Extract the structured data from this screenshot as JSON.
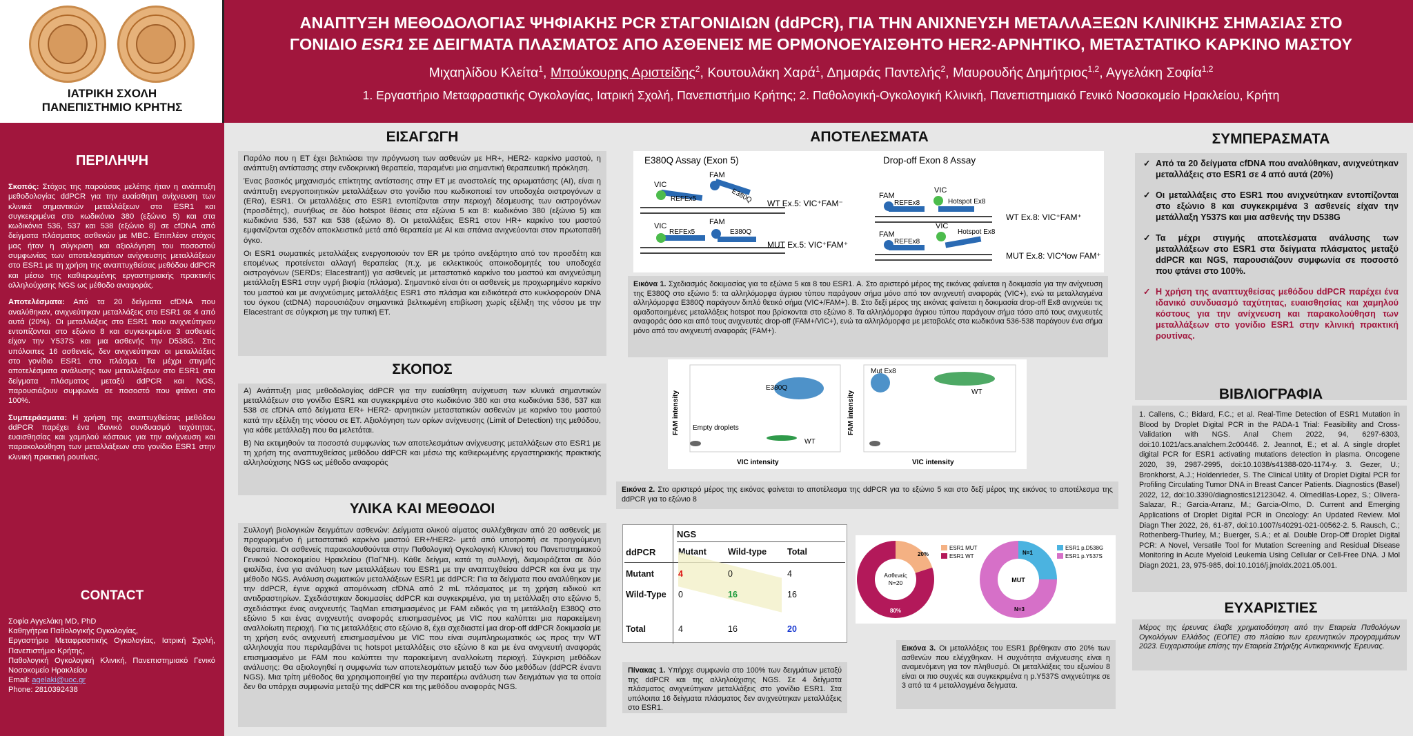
{
  "header": {
    "school_line1": "ΙΑΤΡΙΚΗ ΣΧΟΛΗ",
    "school_line2": "ΠΑΝΕΠΙΣΤΗΜΙΟ ΚΡΗΤΗΣ",
    "title_line1": "ΑΝΑΠΤΥΞΗ ΜΕΘΟΔΟΛΟΓΙΑΣ ΨΗΦΙΑΚΗΣ PCR ΣΤΑΓΟΝΙΔΙΩΝ (ddPCR), ΓΙΑ ΤΗΝ ΑΝΙΧΝΕΥΣΗ ΜΕΤΑΛΛΑΞΕΩΝ ΚΛΙΝΙΚΗΣ ΣΗΜΑΣΙΑΣ ΣΤΟ",
    "title_line2_a": "ΓΟΝΙΔΙΟ ",
    "title_line2_gene": "ESR1",
    "title_line2_b": " ΣΕ ΔΕΙΓΜΑΤΑ ΠΛΑΣΜΑΤΟΣ ΑΠΟ ΑΣΘΕΝΕΙΣ ΜΕ ΟΡΜΟΝΟΕΥΑΙΣΘΗΤΟ HER2-ΑΡΝΗΤΙΚΟ, ΜΕΤΑΣΤΑΤΙΚΟ ΚΑΡΚΙΝΟ ΜΑΣΤΟΥ",
    "authors": [
      {
        "name": "Μιχαηλίδου Κλείτα",
        "sup": "1",
        "presenter": false
      },
      {
        "name": "Μπούκουρης Αριστείδης",
        "sup": "2",
        "presenter": true
      },
      {
        "name": "Κουτουλάκη Χαρά",
        "sup": "1",
        "presenter": false
      },
      {
        "name": "Δημαράς Παντελής",
        "sup": "2",
        "presenter": false
      },
      {
        "name": "Μαυρουδής Δημήτριος",
        "sup": "1,2",
        "presenter": false
      },
      {
        "name": "Αγγελάκη Σοφία",
        "sup": "1,2",
        "presenter": false
      }
    ],
    "affiliations": "1. Εργαστήριο Μεταφραστικής Ογκολογίας, Ιατρική Σχολή, Πανεπιστήμιο Κρήτης; 2. Παθολογική-Ογκολογική Κλινική, Πανεπιστημιακό Γενικό Νοσοκομείο Ηρακλείου, Κρήτη"
  },
  "abstract": {
    "title": "ΠΕΡΙΛΗΨΗ",
    "p1_label": "Σκοπός:",
    "p1": " Στόχος της παρούσας μελέτης ήταν η ανάπτυξη μεθοδολογίας ddPCR για την ευαίσθητη ανίχνευση των κλινικά σημαντικών μεταλλάξεων στο ESR1 και συγκεκριμένα στο κωδικόνιο 380 (εξώνιο 5) και στα κωδικόνια 536, 537 και 538 (εξώνιο 8) σε cfDNA από δείγματα πλάσματος ασθενών με MBC. Επιπλέον στόχος μας ήταν η σύγκριση και αξιολόγηση του ποσοστού συμφωνίας των αποτελεσμάτων ανίχνευσης μεταλλάξεων στο ESR1 με τη χρήση της αναπτυχθείσας μεθόδου ddPCR και μέσω της καθιερωμένης εργαστηριακής πρακτικής αλληλούχισης NGS ως μέθοδο αναφοράς.",
    "p2_label": "Αποτελέσματα:",
    "p2": " Από τα 20 δείγματα cfDNA που αναλύθηκαν, ανιχνεύτηκαν μεταλλάξεις στο ESR1 σε 4 από αυτά (20%). Οι μεταλλάξεις στο ESR1 που ανιχνεύτηκαν εντοπίζονται στο εξώνιο 8 και συγκεκριμένα 3 ασθενείς είχαν την Y537S και μια ασθενής την D538G. Στις υπόλοιπες 16 ασθενείς, δεν ανιχνεύτηκαν οι μεταλλάξεις στο γονίδιο ESR1 στο πλάσμα. Τα μέχρι στιγμής αποτελέσματα ανάλυσης των μεταλλάξεων στο ESR1 στα δείγματα πλάσματος μεταξύ ddPCR και NGS, παρουσιάζουν συμφωνία σε ποσοστό που φτάνει στο 100%.",
    "p3_label": "Συμπεράσματα:",
    "p3": " Η χρήση της αναπτυχθείσας μεθόδου ddPCR παρέχει ένα ιδανικό συνδυασμό ταχύτητας, ευαισθησίας και χαμηλού κόστους για την ανίχνευση και παρακολούθηση των μεταλλάξεων στο γονίδιο ESR1 στην κλινική πρακτική ρουτίνας."
  },
  "contact": {
    "title": "CONTACT",
    "lines": [
      "Σοφία Αγγελάκη MD, PhD",
      "Καθηγήτρια Παθολογικής Ογκολογίας,",
      "Εργαστήριο Μεταφραστικής Ογκολογίας, Ιατρική Σχολή, Πανεπιστήμιο Κρήτης,",
      "Παθολογική Ογκολογική Κλινική, Πανεπιστημιακό Γενικό Νοσοκομείο Ηρακλείου"
    ],
    "email_label": "Email: ",
    "email": "agelaki@uoc.gr",
    "phone": "Phone: 2810392438"
  },
  "intro": {
    "title": "ΕΙΣΑΓΩΓΗ",
    "p1": "Παρόλο που η ET έχει βελτιώσει την πρόγνωση των ασθενών με HR+, HER2- καρκίνο μαστού, η ανάπτυξη αντίστασης στην ενδοκρινική θεραπεία, παραμένει μια σημαντική θεραπευτική πρόκληση.",
    "p2": "Ένας βασικός μηχανισμός επίκτητης αντίστασης στην ET με αναστολείς της αρωματάσης (AI), είναι η ανάπτυξη ενεργοποιητικών μεταλλάξεων στο γονίδιο που κωδικοποιεί τον υποδοχέα οιστρογόνων α (ERα), ESR1. Οι μεταλλάξεις στο ESR1 εντοπίζονται στην περιοχή δέσμευσης των οιστρογόνων (προσδέτης), συνήθως σε δύο hotspot θέσεις στα εξώνια 5 και 8: κωδικόνιο 380 (εξώνιο 5) και κωδικόνια 536, 537 και 538 (εξώνιο 8). Οι μεταλλάξεις ESR1 στον HR+ καρκίνο του μαστού εμφανίζονται σχεδόν αποκλειστικά μετά από θεραπεία με AI και σπάνια ανιχνεύονται στον πρωτοπαθή όγκο.",
    "p3": "Οι ESR1 σωματικές μεταλλάξεις ενεργοποιούν τον ER με τρόπο ανεξάρτητο από τον προσδέτη και επομένως προτείνεται αλλαγή θεραπείας (π.χ. με εκλεκτικούς αποικοδομητές του υποδοχέα οιστρογόνων (SERDs; Elacestrant)) για ασθενείς με μεταστατικό καρκίνο του μαστού και ανιχνεύσιμη μετάλλαξη ESR1 στην υγρή βιοψία (πλάσμα). Σημαντικό είναι ότι οι ασθενείς με προχωρημένο καρκίνο του μαστού και με ανιχνεύσιμες μεταλλάξεις ESR1 στο πλάσμα και ειδικότερά στο κυκλοφορούν DNA του όγκου (ctDNA) παρουσιάζουν σημαντικά βελτιωμένη επιβίωση χωρίς εξέλιξη της νόσου με την Elacestrant σε σύγκριση με την τυπική ET."
  },
  "aim": {
    "title": "ΣΚΟΠΟΣ",
    "a": "A) Ανάπτυξη μιας μεθοδολογίας ddPCR για την ευαίσθητη ανίχνευση των κλινικά σημαντικών μεταλλάξεων στο γονίδιο ESR1 και συγκεκριμένα στο κωδικόνιο 380 και στα κωδικόνια 536, 537 και 538 σε cfDNA από δείγματα ER+ HER2- αρνητικών μεταστατικών ασθενών με καρκίνο του μαστού κατά την εξέλιξη της νόσου σε ET. Αξιολόγηση των ορίων ανίχνευσης (Limit of Detection) της μεθόδου, για κάθε μετάλλαξη που θα μελετάται.",
    "b": "B) Να εκτιμηθούν τα ποσοστά συμφωνίας των αποτελεσμάτων ανίχνευσης μεταλλάξεων στο ESR1 με τη χρήση της αναπτυχθείσας μεθόδου ddPCR και μέσω της καθιερωμένης εργαστηριακής πρακτικής αλληλούχισης NGS ως μέθοδο αναφοράς"
  },
  "methods": {
    "title": "ΥΛΙΚΑ ΚΑΙ ΜΕΘΟΔΟΙ",
    "text": "Συλλογή βιολογικών δειγμάτων ασθενών: Δείγματα ολικού αίματος συλλέχθηκαν από 20 ασθενείς με προχωρημένο ή μεταστατικό καρκίνο μαστού ER+/HER2- μετά από υποτροπή σε προηγούμενη θεραπεία. Οι ασθενείς παρακολουθούνται στην Παθολογική Ογκολογική Κλινική του Πανεπιστημιακού Γενικού Νοσοκομείου Ηρακλείου (ΠαΓΝΗ). Κάθε δείγμα, κατά τη συλλογή, διαμοιράζεται σε δύο φιαλίδια, ένα για ανάλυση των μεταλλάξεων του ESR1 με την αναπτυχθείσα ddPCR και ένα με την μέθοδο NGS. Ανάλυση σωματικών μεταλλάξεων ESR1 με ddPCR: Για τα δείγματα που αναλύθηκαν με την ddPCR, έγινε αρχικά απομόνωση cfDNA από 2 mL πλάσματος με τη χρήση ειδικού κιτ αντιδραστηρίων. Σχεδιάστηκαν δοκιμασίες ddPCR και συγκεκριμένα, για τη μετάλλαξη στο εξώνιο 5, σχεδιάστηκε ένας ανιχνευτής TaqMan επισημασμένος με FAM ειδικός για τη μετάλλαξη E380Q στο εξώνιο 5 και ένας ανιχνευτής αναφοράς επισημασμένος με VIC που καλύπτει μια παρακείμενη αναλλοίωτη περιοχή. Για τις μεταλλάξεις στο εξώνιο 8, έχει σχεδιαστεί μια drop-off ddPCR δοκιμασία με τη χρήση ενός ανιχνευτή επισημασμένου με VIC που είναι συμπληρωματικός ως προς την WT αλληλουχία που περιλαμβάνει τις hotspot μεταλλάξεις στο εξώνιο 8 και με ένα ανιχνευτή αναφοράς επισημασμένο με FAM που καλύπτει την παρακείμενη αναλλοίωτη περιοχή. Σύγκριση μεθόδων ανάλυσης: Θα αξιολογηθεί η συμφωνία των αποτελεσμάτων μεταξύ των δύο μεθόδων (ddPCR έναντι NGS). Μια τρίτη μέθοδος θα χρησιμοποιηθεί για την περαιτέρω ανάλυση των δειγμάτων για τα οποία δεν θα υπάρχει συμφωνία μεταξύ της ddPCR και της μεθόδου αναφοράς NGS."
  },
  "results": {
    "title": "ΑΠΟΤΕΛΕΣΜΑΤΑ",
    "assay_left_title": "E380Q Assay (Exon 5)",
    "assay_right_title": "Drop-off Exon 8 Assay",
    "lbl_vic": "VIC",
    "lbl_fam": "FAM",
    "lbl_refex5": "REFEx5",
    "lbl_e380q": "E380Q",
    "lbl_refex8": "REFEx8",
    "lbl_hotspot": "Hotspot Ex8",
    "wt5": "WT Ex.5: VIC⁺FAM⁻",
    "mut5": "MUT Ex.5: VIC⁺FAM⁺",
    "wt8": "WT Ex.8: VIC⁺FAM⁺",
    "mut8": "MUT Ex.8: VIC^low FAM⁺",
    "fig1_label": "Εικόνα 1.",
    "fig1": " Σχεδιασμός δοκιμασίας για τα εξώνια 5 και 8 του ESR1. A. Στο αριστερό μέρος της εικόνας φαίνεται η δοκιμασία για την ανίχνευση της E380Q στο εξώνιο 5: τα αλληλόμορφα άγριου τύπου παράγουν σήμα μόνο από τον ανιχνευτή αναφοράς (VIC+), ενώ τα μεταλλαγμένα αλληλόμορφα E380Q παράγουν διπλό θετικό σήμα (VIC+/FAM+). B. Στο δεξί μέρος της εικόνας φαίνεται η δοκιμασία drop-off Ex8 ανιχνεύει τις ομαδοποιημένες μεταλλάξεις hotspot που βρίσκονται στο εξώνιο 8. Τα αλληλόμορφα άγριου τύπου παράγουν σήμα τόσο από τους ανιχνευτές αναφοράς όσο και από τους ανιχνευτές drop-off (FAM+/VIC+), ενώ τα αλληλόμορφα με μεταβολές στα κωδικόνια 536-538 παράγουν ένα σήμα μόνο από τον ανιχνευτή αναφοράς (FAM+).",
    "plot_ylabel": "FAM intensity",
    "plot_xlabel": "VIC intensity",
    "plot1_e380q": "E380Q",
    "plot1_empty": "Empty droplets",
    "plot1_wt": "WT",
    "plot2_mut": "Mut Ex8",
    "plot2_wt": "WT",
    "fig2_label": "Εικόνα 2.",
    "fig2": " Στο αριστερό μέρος της εικόνας φαίνεται το αποτέλεσμα της ddPCR για το εξώνιο 5 και στο δεξί μέρος της εικόνας το αποτέλεσμα της ddPCR για το εξώνιο 8",
    "table": {
      "ngs": "NGS",
      "ddpcr": "ddPCR",
      "headers": [
        "Mutant",
        "Wild-type",
        "Total"
      ],
      "rows": [
        {
          "label": "Mutant",
          "cells": [
            "4",
            "0",
            "4"
          ]
        },
        {
          "label": "Wild-Type",
          "cells": [
            "0",
            "16",
            "16"
          ]
        },
        {
          "label": "Total",
          "cells": [
            "4",
            "16",
            "20"
          ]
        }
      ]
    },
    "table_cap_label": "Πίνακας 1.",
    "table_cap": " Υπήρχε συμφωνία στο 100% των δειγμάτων μεταξύ της ddPCR και της αλληλούχισης NGS. Σε 4 δείγματα πλάσματος ανιχνεύτηκαν μεταλλάξεις στο γονίδιο ESR1. Στα υπόλοιπα 16 δείγματα πλάσματος δεν ανιχνεύτηκαν μεταλλάξεις στο ESR1.",
    "donut1_center": [
      "Ασθενείς",
      "N=20"
    ],
    "donut1_p_mut": "20%",
    "donut1_p_wt": "80%",
    "donut1_leg": [
      "ESR1 MUT",
      "ESR1 WT"
    ],
    "donut2_center": "MUT",
    "donut2_n1": "N=1",
    "donut2_n3": "N=3",
    "donut2_leg": [
      "ESR1 p.D538G",
      "ESR1 p.Y537S"
    ],
    "fig3_label": "Εικόνα 3.",
    "fig3": " Οι μεταλλάξεις του ESR1 βρέθηκαν στο 20% των ασθενών που ελέγχθηκαν. Η συχνότητα ανίχνευσης είναι η αναμενόμενη για τον πληθυσμό. Οι μεταλλάξεις του εξωνίου 8 είναι οι πιο συχνές και συγκεκριμένα η p.Y537S ανιχνεύτηκε σε 3 από τα 4 μεταλλαγμένα δείγματα."
  },
  "donut_data": [
    {
      "name": "Ασθενείς",
      "slices": [
        {
          "label": "ESR1 MUT",
          "value": 20,
          "color": "#f4b183"
        },
        {
          "label": "ESR1 WT",
          "value": 80,
          "color": "#b3195a"
        }
      ]
    },
    {
      "name": "MUT",
      "slices": [
        {
          "label": "ESR1 p.D538G",
          "value": 1,
          "color": "#4bb3e0"
        },
        {
          "label": "ESR1 p.Y537S",
          "value": 3,
          "color": "#d670c8"
        }
      ]
    }
  ],
  "conclusions": {
    "title": "ΣΥΜΠΕΡΑΣΜΑΤΑ",
    "items": [
      "Από τα 20 δείγματα cfDNA που αναλύθηκαν, ανιχνεύτηκαν μεταλλάξεις στο ESR1 σε 4 από αυτά (20%)",
      "Οι μεταλλάξεις στο ESR1 που ανιχνεύτηκαν εντοπίζονται στο εξώνιο 8 και συγκεκριμένα 3 ασθενείς είχαν την μετάλλαξη Y537S και μια ασθενής την D538G",
      "Τα μέχρι στιγμής αποτελέσματα ανάλυσης των μεταλλάξεων στο ESR1 στα δείγματα πλάσματος μεταξύ ddPCR και NGS, παρουσιάζουν συμφωνία σε ποσοστό που φτάνει στο 100%.",
      "Η χρήση της αναπτυχθείσας μεθόδου ddPCR παρέχει ένα ιδανικό συνδυασμό ταχύτητας, ευαισθησίας και χαμηλού κόστους για την ανίχνευση και παρακολούθηση των μεταλλάξεων στο γονίδιο ESR1 στην κλινική πρακτική ρουτίνας."
    ]
  },
  "references": {
    "title": "ΒΙΒΛΙΟΓΡΑΦΙΑ",
    "text": "1. Callens, C.; Bidard, F.C.; et al. Real-Time Detection of ESR1 Mutation in Blood by Droplet Digital PCR in the PADA-1 Trial: Feasibility and Cross-Validation with NGS. Anal Chem 2022, 94, 6297-6303, doi:10.1021/acs.analchem.2c00446. 2. Jeannot, E.; et al. A single droplet digital PCR for ESR1 activating mutations detection in plasma. Oncogene 2020, 39, 2987-2995, doi:10.1038/s41388-020-1174-y. 3. Gezer, U.; Bronkhorst, A.J.; Holdenrieder, S. The Clinical Utility of Droplet Digital PCR for Profiling Circulating Tumor DNA in Breast Cancer Patients. Diagnostics (Basel) 2022, 12, doi:10.3390/diagnostics12123042. 4. Olmedillas-Lopez, S.; Olivera-Salazar, R.; Garcia-Arranz, M.; Garcia-Olmo, D. Current and Emerging Applications of Droplet Digital PCR in Oncology: An Updated Review. Mol Diagn Ther 2022, 26, 61-87, doi:10.1007/s40291-021-00562-2. 5. Rausch, C.; Rothenberg-Thurley, M.; Buerger, S.A.; et al. Double Drop-Off Droplet Digital PCR: A Novel, Versatile Tool for Mutation Screening and Residual Disease Monitoring in Acute Myeloid Leukemia Using Cellular or Cell-Free DNA. J Mol Diagn 2021, 23, 975-985, doi:10.1016/j.jmoldx.2021.05.001."
  },
  "thanks": {
    "title": "ΕΥΧΑΡΙΣΤΙΕΣ",
    "text": "Μέρος της έρευνας έλαβε χρηματοδότηση από την Εταιρεία Παθολόγων Ογκολόγων Ελλάδος (ΕΟΠΕ) στο πλαίσιο των ερευνητικών προγραμμάτων 2023. Ευχαριστούμε επίσης την Εταιρεία Στήριξης Αντικαρκινικής Έρευνας."
  }
}
